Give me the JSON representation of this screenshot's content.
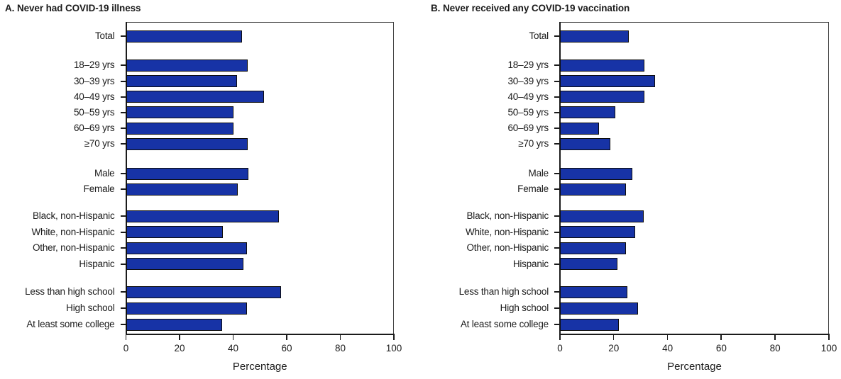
{
  "figure": {
    "background": "#ffffff"
  },
  "colors": {
    "bar_fill": "#1733A6",
    "bar_outline": "#0D0D0D",
    "frame": "#3F3F3F",
    "axis": "#1B1B1B",
    "text": "#1B1B1B"
  },
  "chart_data": [
    {
      "type": "bar",
      "orientation": "horizontal",
      "title": "A. Never had COVID-19 illness",
      "xlabel": "Percentage",
      "xlim": [
        0,
        100
      ],
      "x_ticks": [
        0,
        20,
        40,
        60,
        80,
        100
      ],
      "grid": false,
      "legend": false,
      "categories": [
        "Total",
        "18–29 yrs",
        "30–39 yrs",
        "40–49 yrs",
        "50–59 yrs",
        "60–69 yrs",
        "≥70 yrs",
        "Male",
        "Female",
        "Black, non-Hispanic",
        "White, non-Hispanic",
        "Other, non-Hispanic",
        "Hispanic",
        "Less than high school",
        "High school",
        "At least some college"
      ],
      "values": [
        43.4,
        45.4,
        41.4,
        51.5,
        40.0,
        40.1,
        45.5,
        45.7,
        41.6,
        57.1,
        36.1,
        45.2,
        43.8,
        57.8,
        45.1,
        36.0
      ],
      "group_breaks_after": [
        0,
        6,
        8,
        12
      ]
    },
    {
      "type": "bar",
      "orientation": "horizontal",
      "title": "B. Never received any COVID-19 vaccination",
      "xlabel": "Percentage",
      "xlim": [
        0,
        100
      ],
      "x_ticks": [
        0,
        20,
        40,
        60,
        80,
        100
      ],
      "grid": false,
      "legend": false,
      "categories": [
        "Total",
        "18–29 yrs",
        "30–39 yrs",
        "40–49 yrs",
        "50–59 yrs",
        "60–69 yrs",
        "≥70 yrs",
        "Male",
        "Female",
        "Black, non-Hispanic",
        "White, non-Hispanic",
        "Other, non-Hispanic",
        "Hispanic",
        "Less than high school",
        "High school",
        "At least some college"
      ],
      "values": [
        25.5,
        31.4,
        35.3,
        31.3,
        20.6,
        14.5,
        18.8,
        26.8,
        24.5,
        31.2,
        27.9,
        24.5,
        21.5,
        25.1,
        28.9,
        21.9
      ],
      "group_breaks_after": [
        0,
        6,
        8,
        12
      ]
    }
  ]
}
